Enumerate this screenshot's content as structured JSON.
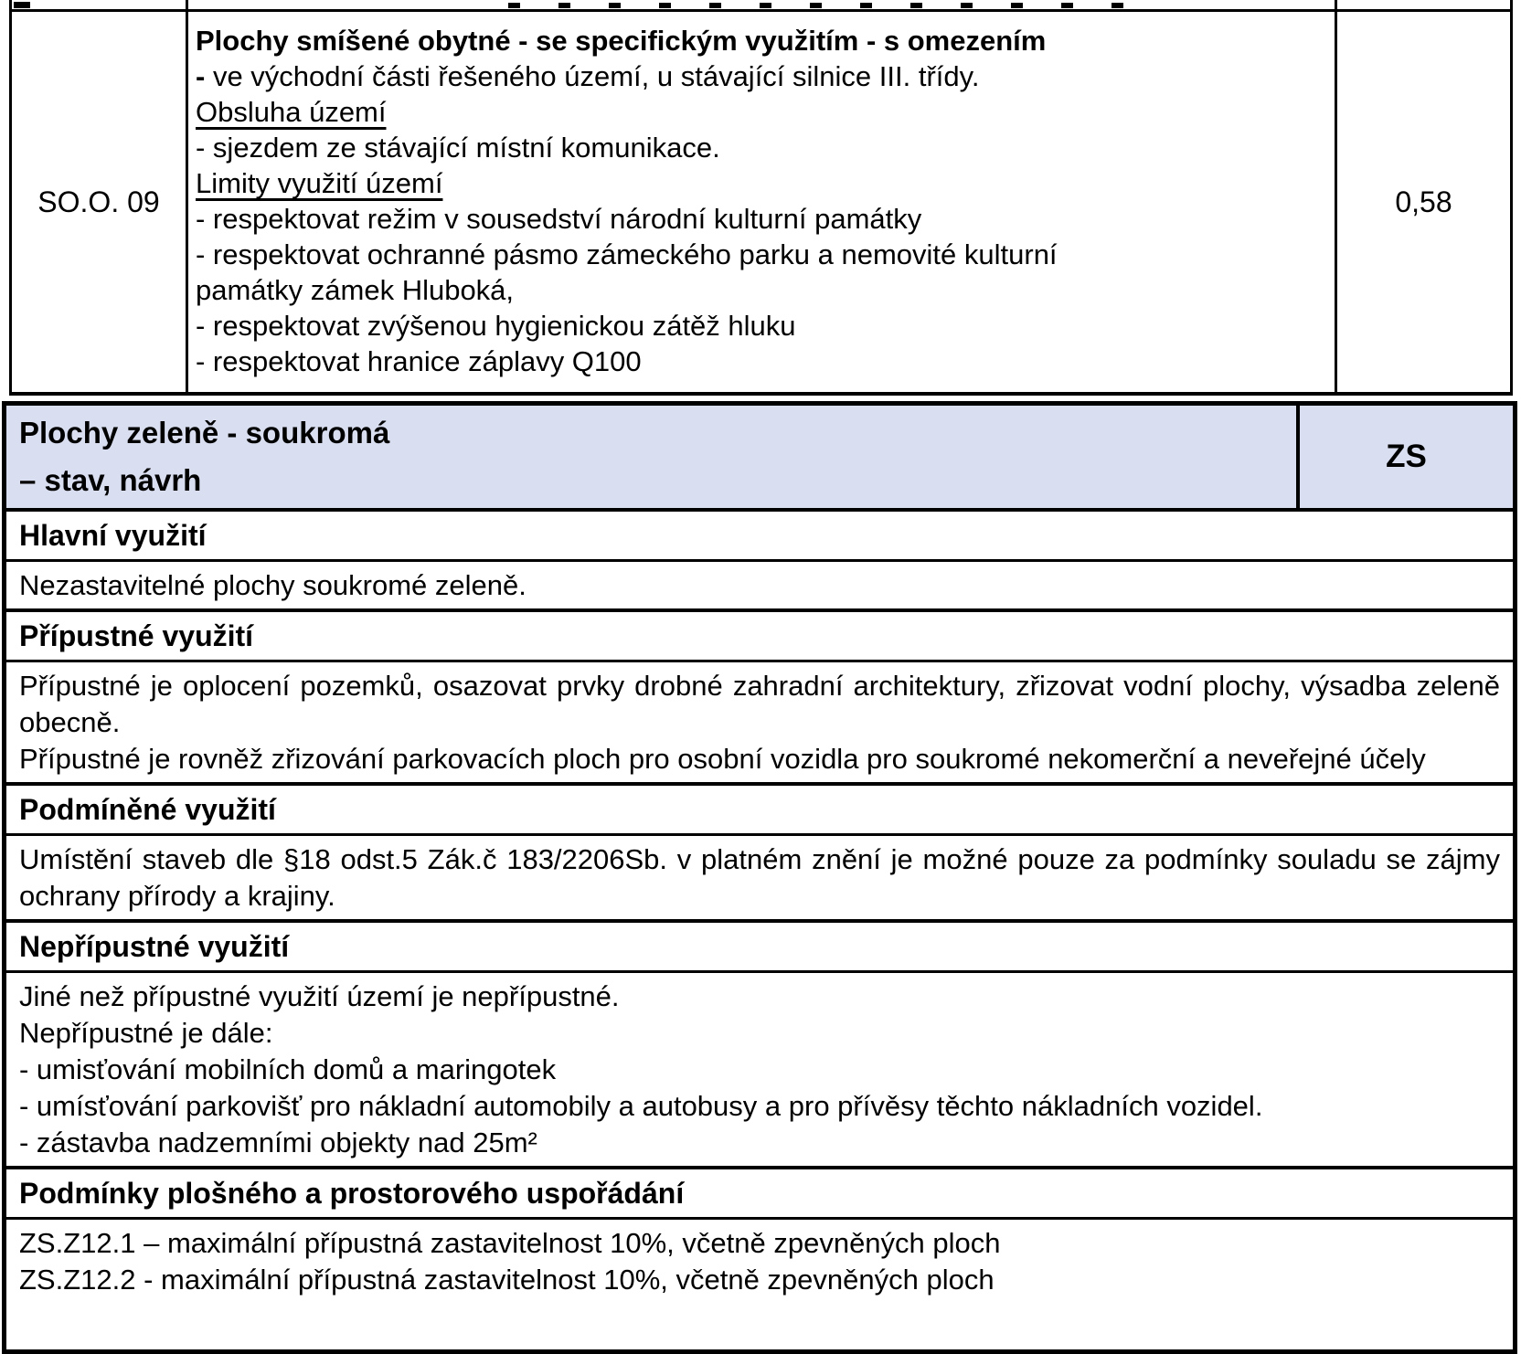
{
  "colors": {
    "border": "#000000",
    "zone_header_bg": "#d9def0",
    "text": "#000000"
  },
  "top_table": {
    "row": {
      "code": "SO.O. 09",
      "area_value": "0,58",
      "title": "Plochy smíšené obytné - se specifickým využitím - s omezením",
      "lines": [
        {
          "style": "dash-bold",
          "text": "- ve východní části řešeného území, u stávající silnice III. třídy."
        },
        {
          "style": "underline",
          "text": "Obsluha území"
        },
        {
          "style": "plain",
          "text": "- sjezdem ze stávající místní komunikace."
        },
        {
          "style": "underline",
          "text": "Limity využití území"
        },
        {
          "style": "plain",
          "text": "- respektovat režim v sousedství národní kulturní památky"
        },
        {
          "style": "plain",
          "text": "- respektovat ochranné pásmo zámeckého parku a nemovité kulturní"
        },
        {
          "style": "plain",
          "text": "památky zámek Hluboká,"
        },
        {
          "style": "plain",
          "text": "- respektovat zvýšenou hygienickou zátěž hluku"
        },
        {
          "style": "plain",
          "text": "- respektovat hranice záplavy Q100"
        }
      ]
    }
  },
  "zone_table": {
    "header": {
      "title_line1": "Plochy zeleně - soukromá",
      "title_line2": "– stav, návrh",
      "code": "ZS"
    },
    "sections": [
      {
        "title": "Hlavní využití",
        "justify": false,
        "paragraphs": [
          "Nezastavitelné plochy soukromé zeleně."
        ]
      },
      {
        "title": "Přípustné využití",
        "justify": true,
        "paragraphs": [
          "Přípustné je oplocení pozemků, osazovat prvky drobné zahradní architektury, zřizovat vodní plochy, výsadba zeleně obecně.",
          "Přípustné je rovněž zřizování parkovacích ploch pro osobní vozidla pro soukromé nekomerční a neveřejné účely"
        ]
      },
      {
        "title": "Podmíněné využití",
        "justify": true,
        "paragraphs": [
          "Umístění staveb dle §18 odst.5 Zák.č 183/2206Sb. v platném znění je možné pouze za podmínky souladu se zájmy ochrany přírody a krajiny."
        ]
      },
      {
        "title": "Nepřípustné využití",
        "justify": false,
        "paragraphs": [
          "Jiné než přípustné využití území je nepřípustné.",
          "Nepřípustné je dále:",
          "- umisťování mobilních domů a maringotek",
          "- umísťování parkovišť pro nákladní automobily a autobusy a pro přívěsy těchto nákladních vozidel.",
          "- zástavba nadzemními objekty nad 25m²"
        ]
      },
      {
        "title": "Podmínky plošného a prostorového uspořádání",
        "justify": false,
        "paragraphs": [
          "ZS.Z12.1 – maximální přípustná zastavitelnost 10%, včetně zpevněných ploch",
          "ZS.Z12.2 - maximální přípustná zastavitelnost 10%, včetně zpevněných ploch"
        ]
      }
    ]
  }
}
